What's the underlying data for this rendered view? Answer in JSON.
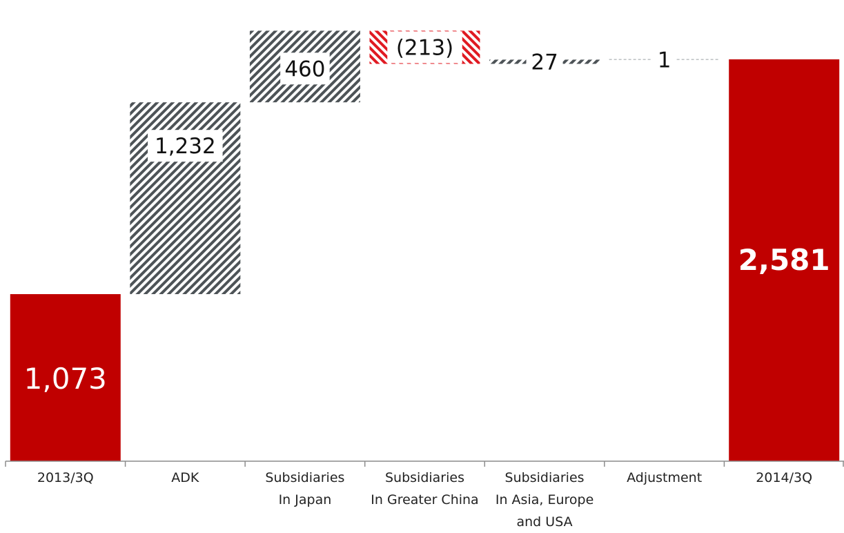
{
  "chart_data": {
    "type": "bar",
    "subtype": "waterfall",
    "categories": [
      "2013/3Q",
      "ADK",
      "Subsidiaries\nIn Japan",
      "Subsidiaries\nIn Greater China",
      "Subsidiaries\nIn Asia, Europe\nand USA",
      "Adjustment",
      "2014/3Q"
    ],
    "steps": [
      {
        "kind": "total",
        "value": 1073,
        "label": "1,073"
      },
      {
        "kind": "delta",
        "value": 1232,
        "label": "1,232"
      },
      {
        "kind": "delta",
        "value": 460,
        "label": "460"
      },
      {
        "kind": "delta",
        "value": -213,
        "label": "(213)"
      },
      {
        "kind": "delta",
        "value": 27,
        "label": "27"
      },
      {
        "kind": "delta",
        "value": 1,
        "label": "1"
      },
      {
        "kind": "total",
        "value": 2581,
        "label": "2,581"
      }
    ],
    "ylim": [
      0,
      2900
    ],
    "grid": false,
    "title": "",
    "xlabel": "",
    "ylabel": "",
    "colors": {
      "total": "#c00000",
      "increase": "#4d5357",
      "decrease": "#e01a22",
      "axis": "#8c8c8c"
    }
  }
}
